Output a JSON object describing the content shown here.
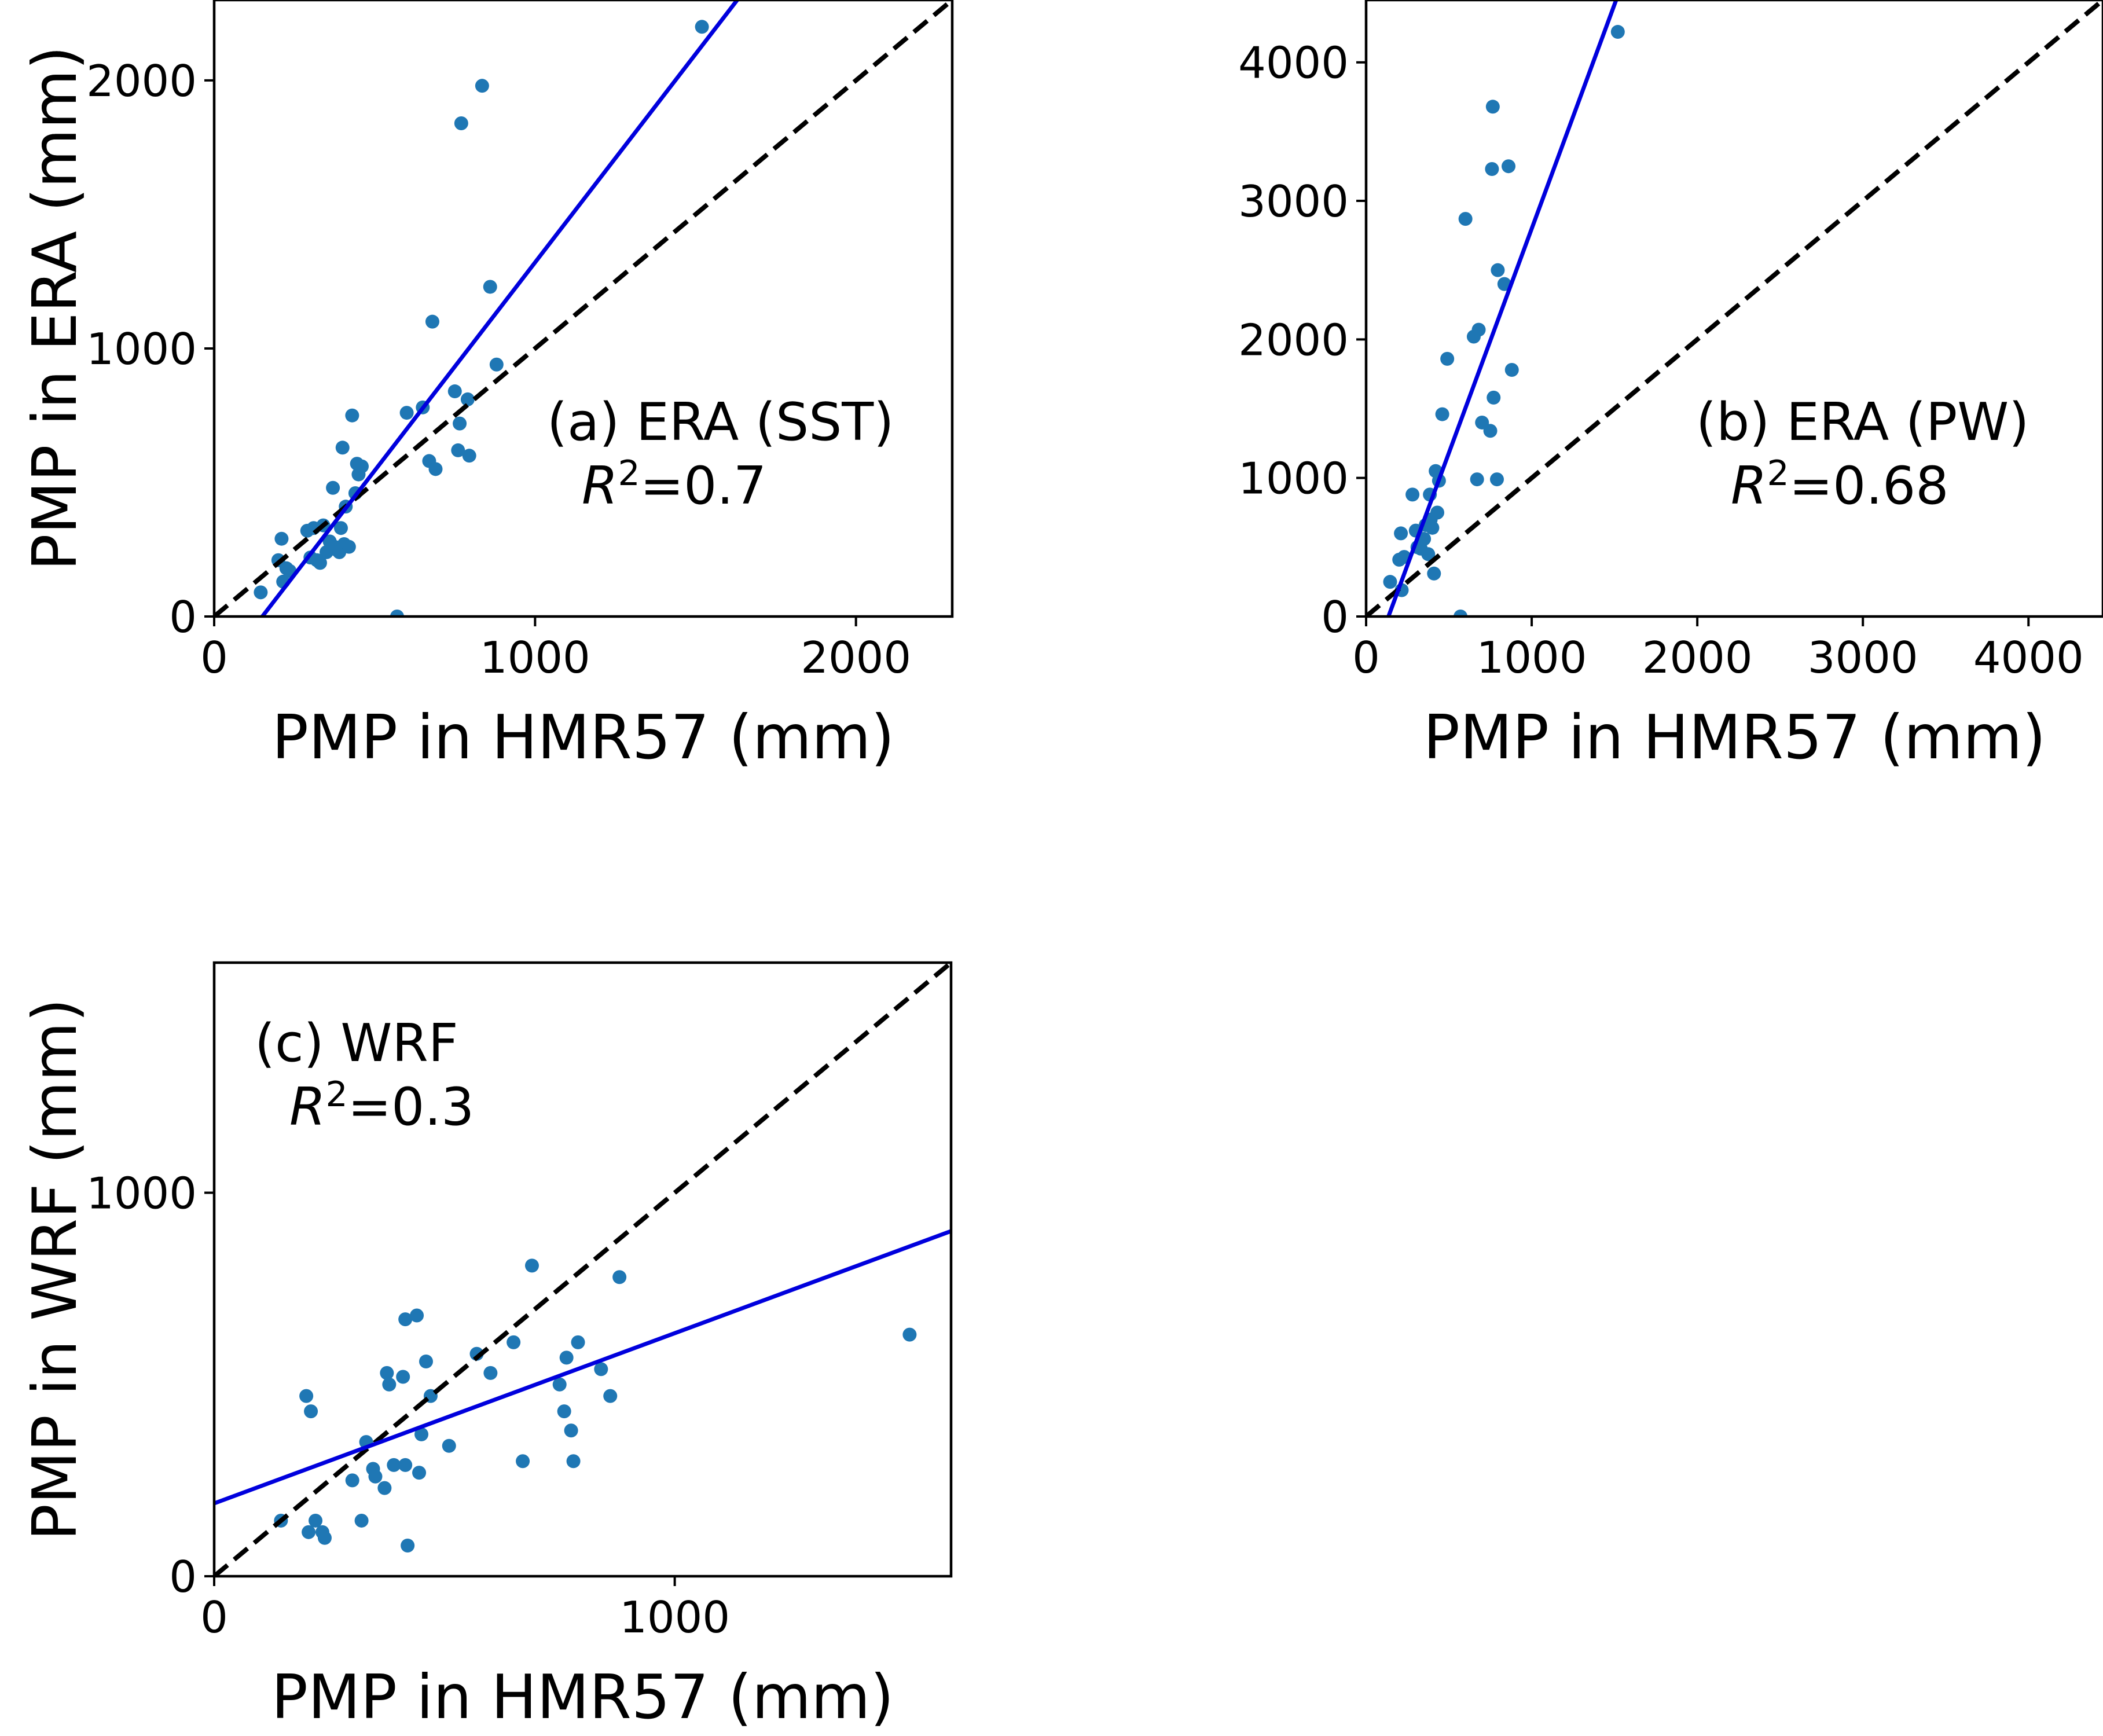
{
  "chart_data": [
    {
      "type": "scatter",
      "panel": "a",
      "annotation": "(a) ERA (SST)",
      "r2_symbol": "R",
      "r2_value": "=0.7",
      "xlabel": "PMP in HMR57 (mm)",
      "ylabel": "PMP in ERA (mm)",
      "xlim": [
        0,
        2300
      ],
      "ylim": [
        0,
        2300
      ],
      "xticks": [
        0,
        1000,
        2000
      ],
      "yticks": [
        0,
        1000,
        2000
      ],
      "grid": false,
      "point_color": "#1f77b4",
      "fit_color": "#0000dd",
      "identity_color": "#000000",
      "fit_line": [
        [
          150,
          0
        ],
        [
          1630,
          2300
        ]
      ],
      "points": [
        [
          145,
          90
        ],
        [
          200,
          210
        ],
        [
          210,
          290
        ],
        [
          215,
          130
        ],
        [
          225,
          180
        ],
        [
          235,
          170
        ],
        [
          290,
          320
        ],
        [
          300,
          220
        ],
        [
          310,
          330
        ],
        [
          320,
          210
        ],
        [
          330,
          200
        ],
        [
          340,
          340
        ],
        [
          350,
          240
        ],
        [
          360,
          280
        ],
        [
          370,
          480
        ],
        [
          375,
          260
        ],
        [
          380,
          250
        ],
        [
          390,
          240
        ],
        [
          395,
          330
        ],
        [
          400,
          630
        ],
        [
          405,
          270
        ],
        [
          410,
          410
        ],
        [
          420,
          260
        ],
        [
          430,
          750
        ],
        [
          440,
          460
        ],
        [
          445,
          570
        ],
        [
          450,
          530
        ],
        [
          460,
          560
        ],
        [
          570,
          0
        ],
        [
          600,
          760
        ],
        [
          650,
          780
        ],
        [
          670,
          580
        ],
        [
          680,
          1100
        ],
        [
          690,
          550
        ],
        [
          750,
          840
        ],
        [
          760,
          620
        ],
        [
          765,
          720
        ],
        [
          770,
          1840
        ],
        [
          790,
          810
        ],
        [
          795,
          600
        ],
        [
          835,
          1980
        ],
        [
          860,
          1230
        ],
        [
          880,
          940
        ],
        [
          1520,
          2200
        ]
      ]
    },
    {
      "type": "scatter",
      "panel": "b",
      "annotation": "(b) ERA (PW)",
      "r2_symbol": "R",
      "r2_value": "=0.68",
      "xlabel": "PMP in HMR57 (mm)",
      "ylabel": "PMP in ERA (mm)",
      "xlim": [
        0,
        4450
      ],
      "ylim": [
        0,
        4450
      ],
      "xticks": [
        0,
        1000,
        2000,
        3000,
        4000
      ],
      "yticks": [
        0,
        1000,
        2000,
        3000,
        4000
      ],
      "grid": false,
      "point_color": "#1f77b4",
      "fit_color": "#0000dd",
      "identity_color": "#000000",
      "fit_line": [
        [
          135,
          0
        ],
        [
          1510,
          4450
        ]
      ],
      "points": [
        [
          145,
          250
        ],
        [
          200,
          410
        ],
        [
          210,
          600
        ],
        [
          215,
          190
        ],
        [
          230,
          430
        ],
        [
          280,
          880
        ],
        [
          300,
          620
        ],
        [
          310,
          500
        ],
        [
          330,
          490
        ],
        [
          350,
          560
        ],
        [
          360,
          660
        ],
        [
          375,
          450
        ],
        [
          385,
          880
        ],
        [
          390,
          700
        ],
        [
          400,
          640
        ],
        [
          410,
          310
        ],
        [
          420,
          1050
        ],
        [
          430,
          750
        ],
        [
          440,
          980
        ],
        [
          460,
          1460
        ],
        [
          490,
          1860
        ],
        [
          570,
          0
        ],
        [
          600,
          2870
        ],
        [
          650,
          2020
        ],
        [
          670,
          990
        ],
        [
          680,
          2070
        ],
        [
          700,
          1400
        ],
        [
          750,
          1340
        ],
        [
          760,
          3230
        ],
        [
          765,
          3680
        ],
        [
          770,
          1580
        ],
        [
          790,
          990
        ],
        [
          795,
          2500
        ],
        [
          835,
          2400
        ],
        [
          860,
          3250
        ],
        [
          880,
          1780
        ],
        [
          1520,
          4220
        ]
      ]
    },
    {
      "type": "scatter",
      "panel": "c",
      "annotation": "(c) WRF",
      "r2_symbol": "R",
      "r2_value": "=0.3",
      "xlabel": "PMP in HMR57 (mm)",
      "ylabel": "PMP in WRF (mm)",
      "xlim": [
        0,
        1600
      ],
      "ylim": [
        0,
        1600
      ],
      "xticks": [
        0,
        1000
      ],
      "yticks": [
        0,
        1000
      ],
      "grid": false,
      "point_color": "#1f77b4",
      "fit_color": "#0000dd",
      "identity_color": "#000000",
      "fit_line": [
        [
          0,
          190
        ],
        [
          1600,
          900
        ]
      ],
      "points": [
        [
          145,
          145
        ],
        [
          200,
          470
        ],
        [
          205,
          115
        ],
        [
          210,
          430
        ],
        [
          220,
          145
        ],
        [
          235,
          115
        ],
        [
          240,
          100
        ],
        [
          300,
          250
        ],
        [
          320,
          145
        ],
        [
          330,
          350
        ],
        [
          345,
          280
        ],
        [
          350,
          260
        ],
        [
          370,
          230
        ],
        [
          375,
          530
        ],
        [
          380,
          500
        ],
        [
          390,
          290
        ],
        [
          410,
          520
        ],
        [
          415,
          290
        ],
        [
          415,
          670
        ],
        [
          420,
          80
        ],
        [
          440,
          680
        ],
        [
          445,
          270
        ],
        [
          450,
          370
        ],
        [
          460,
          560
        ],
        [
          470,
          470
        ],
        [
          510,
          340
        ],
        [
          570,
          580
        ],
        [
          600,
          530
        ],
        [
          650,
          610
        ],
        [
          670,
          300
        ],
        [
          690,
          810
        ],
        [
          750,
          500
        ],
        [
          760,
          430
        ],
        [
          765,
          570
        ],
        [
          775,
          380
        ],
        [
          780,
          300
        ],
        [
          790,
          610
        ],
        [
          840,
          540
        ],
        [
          860,
          470
        ],
        [
          880,
          780
        ],
        [
          1510,
          630
        ]
      ]
    }
  ]
}
